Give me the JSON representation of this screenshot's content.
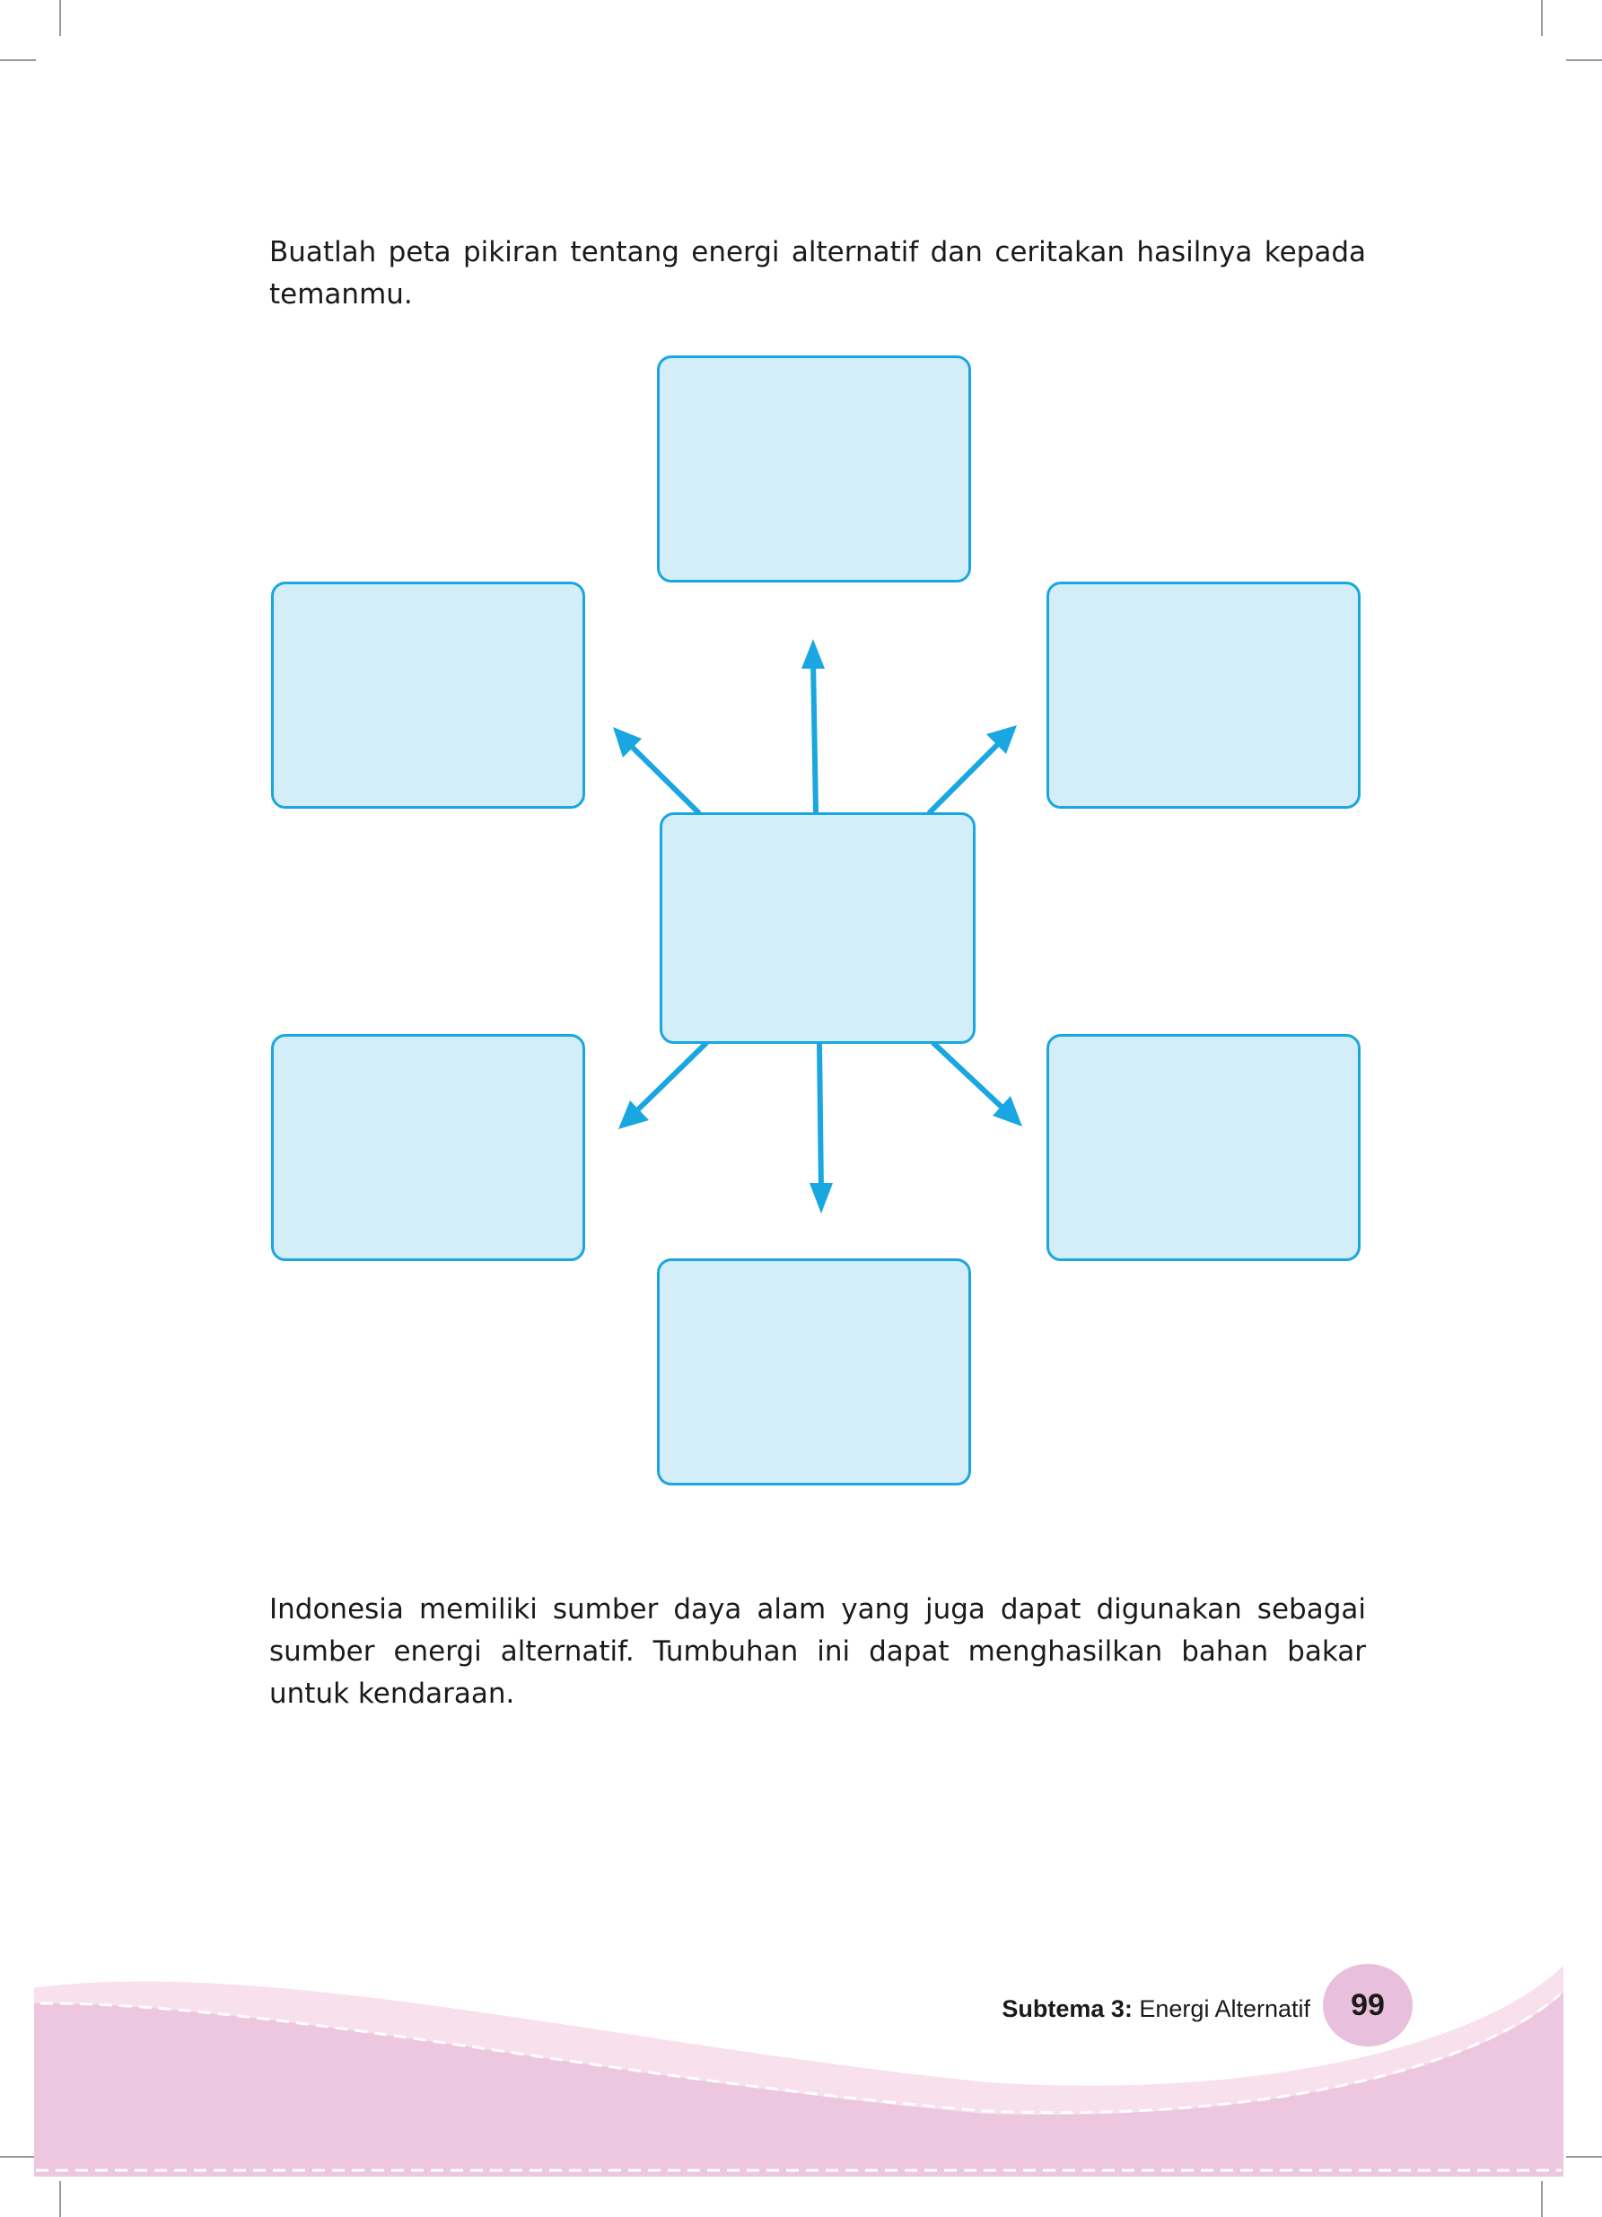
{
  "instruction": {
    "text": "Buatlah peta pikiran tentang energi alternatif dan ceritakan hasilnya kepada temanmu."
  },
  "mind_map": {
    "boxes": [
      "",
      "",
      "",
      "",
      "",
      "",
      ""
    ]
  },
  "paragraph": {
    "text": "Indonesia memiliki sumber daya alam yang juga dapat digunakan sebagai sumber energi alternatif. Tumbuhan ini dapat menghasilkan bahan bakar untuk kendaraan."
  },
  "footer": {
    "subtema_label": "Subtema 3:",
    "subtema_title": "Energi Alternatif",
    "page_number": "99"
  },
  "colors": {
    "box_fill": "#d3eef9",
    "box_border": "#1aa6e0",
    "arrow": "#1aa6e0",
    "footer_band": "#ecc7df",
    "footer_light": "#f8e0ec",
    "page_badge": "#e8bfdc"
  }
}
